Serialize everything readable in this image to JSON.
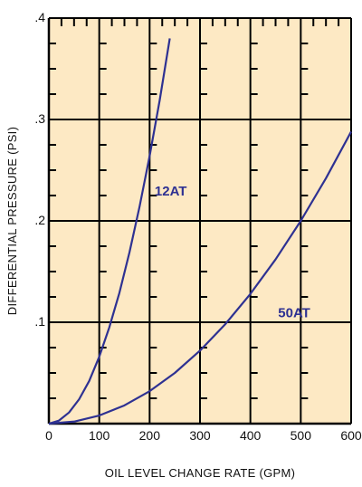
{
  "chart_data": {
    "type": "line",
    "title": "",
    "xlabel": "OIL LEVEL CHANGE RATE (GPM)",
    "ylabel": "DIFFERENTIAL PRESSURE (PSI)",
    "xlim": [
      0,
      600
    ],
    "ylim": [
      0,
      0.4
    ],
    "x_ticks": [
      0,
      100,
      200,
      300,
      400,
      500,
      600
    ],
    "x_tick_labels": [
      "0",
      "100",
      "200",
      "300",
      "400",
      "500",
      "600"
    ],
    "y_ticks": [
      0.1,
      0.2,
      0.3,
      0.4
    ],
    "y_tick_labels": [
      ".1",
      ".2",
      ".3",
      ".4"
    ],
    "grid": true,
    "colors": {
      "plot_background": "#fde9c4",
      "grid": "#000000",
      "series": "#2e3192"
    },
    "series": [
      {
        "name": "12AT",
        "x": [
          0,
          20,
          40,
          60,
          80,
          100,
          120,
          140,
          160,
          180,
          200,
          220,
          240
        ],
        "y": [
          0,
          0.003,
          0.011,
          0.024,
          0.042,
          0.066,
          0.095,
          0.129,
          0.169,
          0.214,
          0.264,
          0.319,
          0.38
        ]
      },
      {
        "name": "50AT",
        "x": [
          0,
          50,
          100,
          150,
          200,
          250,
          300,
          350,
          400,
          450,
          500,
          550,
          600
        ],
        "y": [
          0,
          0.002,
          0.008,
          0.018,
          0.032,
          0.05,
          0.072,
          0.098,
          0.128,
          0.162,
          0.2,
          0.242,
          0.288
        ]
      }
    ]
  }
}
